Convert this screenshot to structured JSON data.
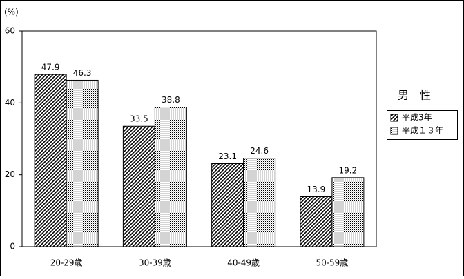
{
  "chart_data": {
    "type": "bar",
    "y_label": "(%)",
    "categories": [
      "20-29歳",
      "30-39歳",
      "40-49歳",
      "50-59歳"
    ],
    "series": [
      {
        "name": "平成3年",
        "color": "#000000",
        "pattern": "hatch",
        "values": [
          47.9,
          33.5,
          23.1,
          13.9
        ]
      },
      {
        "name": "平成１３年",
        "color": "#000000",
        "pattern": "dots",
        "values": [
          46.3,
          38.8,
          24.6,
          19.2
        ]
      }
    ],
    "ylim": [
      0,
      60
    ],
    "yticks": [
      0,
      20,
      40,
      60
    ],
    "legend_title": "男　性",
    "legend": "right"
  }
}
